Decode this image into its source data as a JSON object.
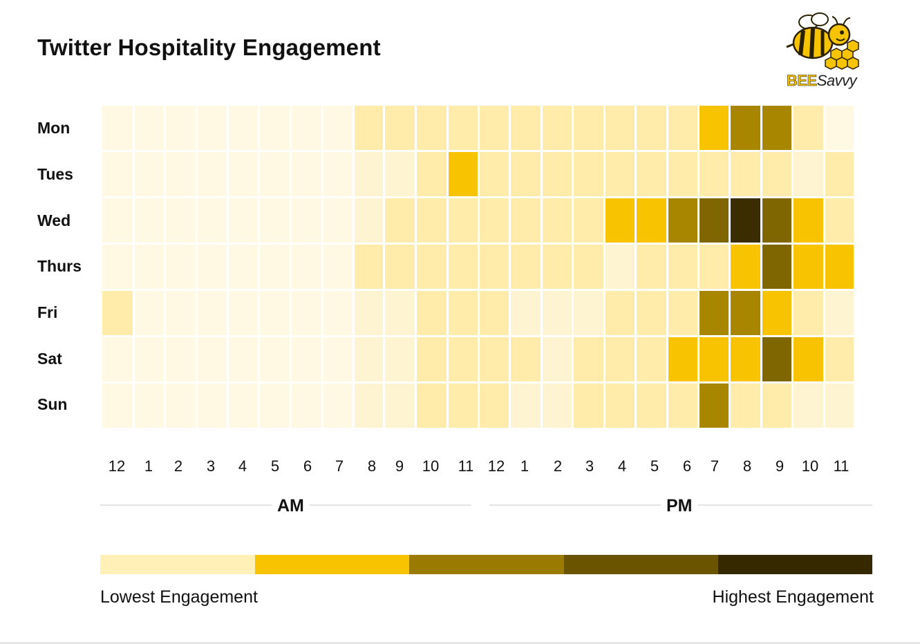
{
  "chart_data": {
    "type": "heatmap",
    "title": "Twitter Hospitality Engagement",
    "rows": [
      "Mon",
      "Tues",
      "Wed",
      "Thurs",
      "Fri",
      "Sat",
      "Sun"
    ],
    "columns": [
      "12",
      "1",
      "2",
      "3",
      "4",
      "5",
      "6",
      "7",
      "8",
      "9",
      "10",
      "11",
      "12",
      "1",
      "2",
      "3",
      "4",
      "5",
      "6",
      "7",
      "8",
      "9",
      "10",
      "11"
    ],
    "periods": [
      "AM",
      "PM"
    ],
    "scale_min": 0,
    "scale_max": 6,
    "values": [
      [
        0,
        0,
        0,
        0,
        0,
        0,
        0,
        0,
        2,
        2,
        2,
        2,
        2,
        2,
        2,
        2,
        2,
        2,
        2,
        3,
        4,
        4,
        2,
        0
      ],
      [
        0,
        0,
        0,
        0,
        0,
        0,
        0,
        0,
        1,
        1,
        2,
        3,
        2,
        2,
        2,
        2,
        2,
        2,
        2,
        2,
        2,
        2,
        1,
        2
      ],
      [
        0,
        0,
        0,
        0,
        0,
        0,
        0,
        0,
        1,
        2,
        2,
        2,
        2,
        2,
        2,
        2,
        3,
        3,
        4,
        5,
        6,
        5,
        3,
        2
      ],
      [
        0,
        0,
        0,
        0,
        0,
        0,
        0,
        0,
        2,
        2,
        2,
        2,
        2,
        2,
        2,
        2,
        1,
        2,
        2,
        2,
        3,
        5,
        3,
        3
      ],
      [
        2,
        0,
        0,
        0,
        0,
        0,
        0,
        0,
        1,
        1,
        2,
        2,
        2,
        1,
        1,
        1,
        2,
        2,
        2,
        4,
        4,
        3,
        2,
        1
      ],
      [
        0,
        0,
        0,
        0,
        0,
        0,
        0,
        0,
        1,
        1,
        2,
        2,
        2,
        2,
        1,
        2,
        2,
        2,
        3,
        3,
        3,
        5,
        3,
        2
      ],
      [
        0,
        0,
        0,
        0,
        0,
        0,
        0,
        0,
        1,
        1,
        2,
        2,
        2,
        1,
        1,
        2,
        2,
        2,
        2,
        4,
        2,
        2,
        1,
        1
      ]
    ],
    "cell_colors": [
      "#fff8e2",
      "#fff4d2",
      "#ffebaa",
      "#f8c300",
      "#a88600",
      "#7f6600",
      "#3a2d00"
    ],
    "legend": {
      "colors": [
        "#fff0b8",
        "#f8c300",
        "#9a7a00",
        "#6b5400",
        "#362900"
      ],
      "low_label": "Lowest Engagement",
      "high_label": "Highest Engagement"
    }
  },
  "logo": {
    "text_bee": "BEE",
    "text_savvy": "Savvy"
  }
}
